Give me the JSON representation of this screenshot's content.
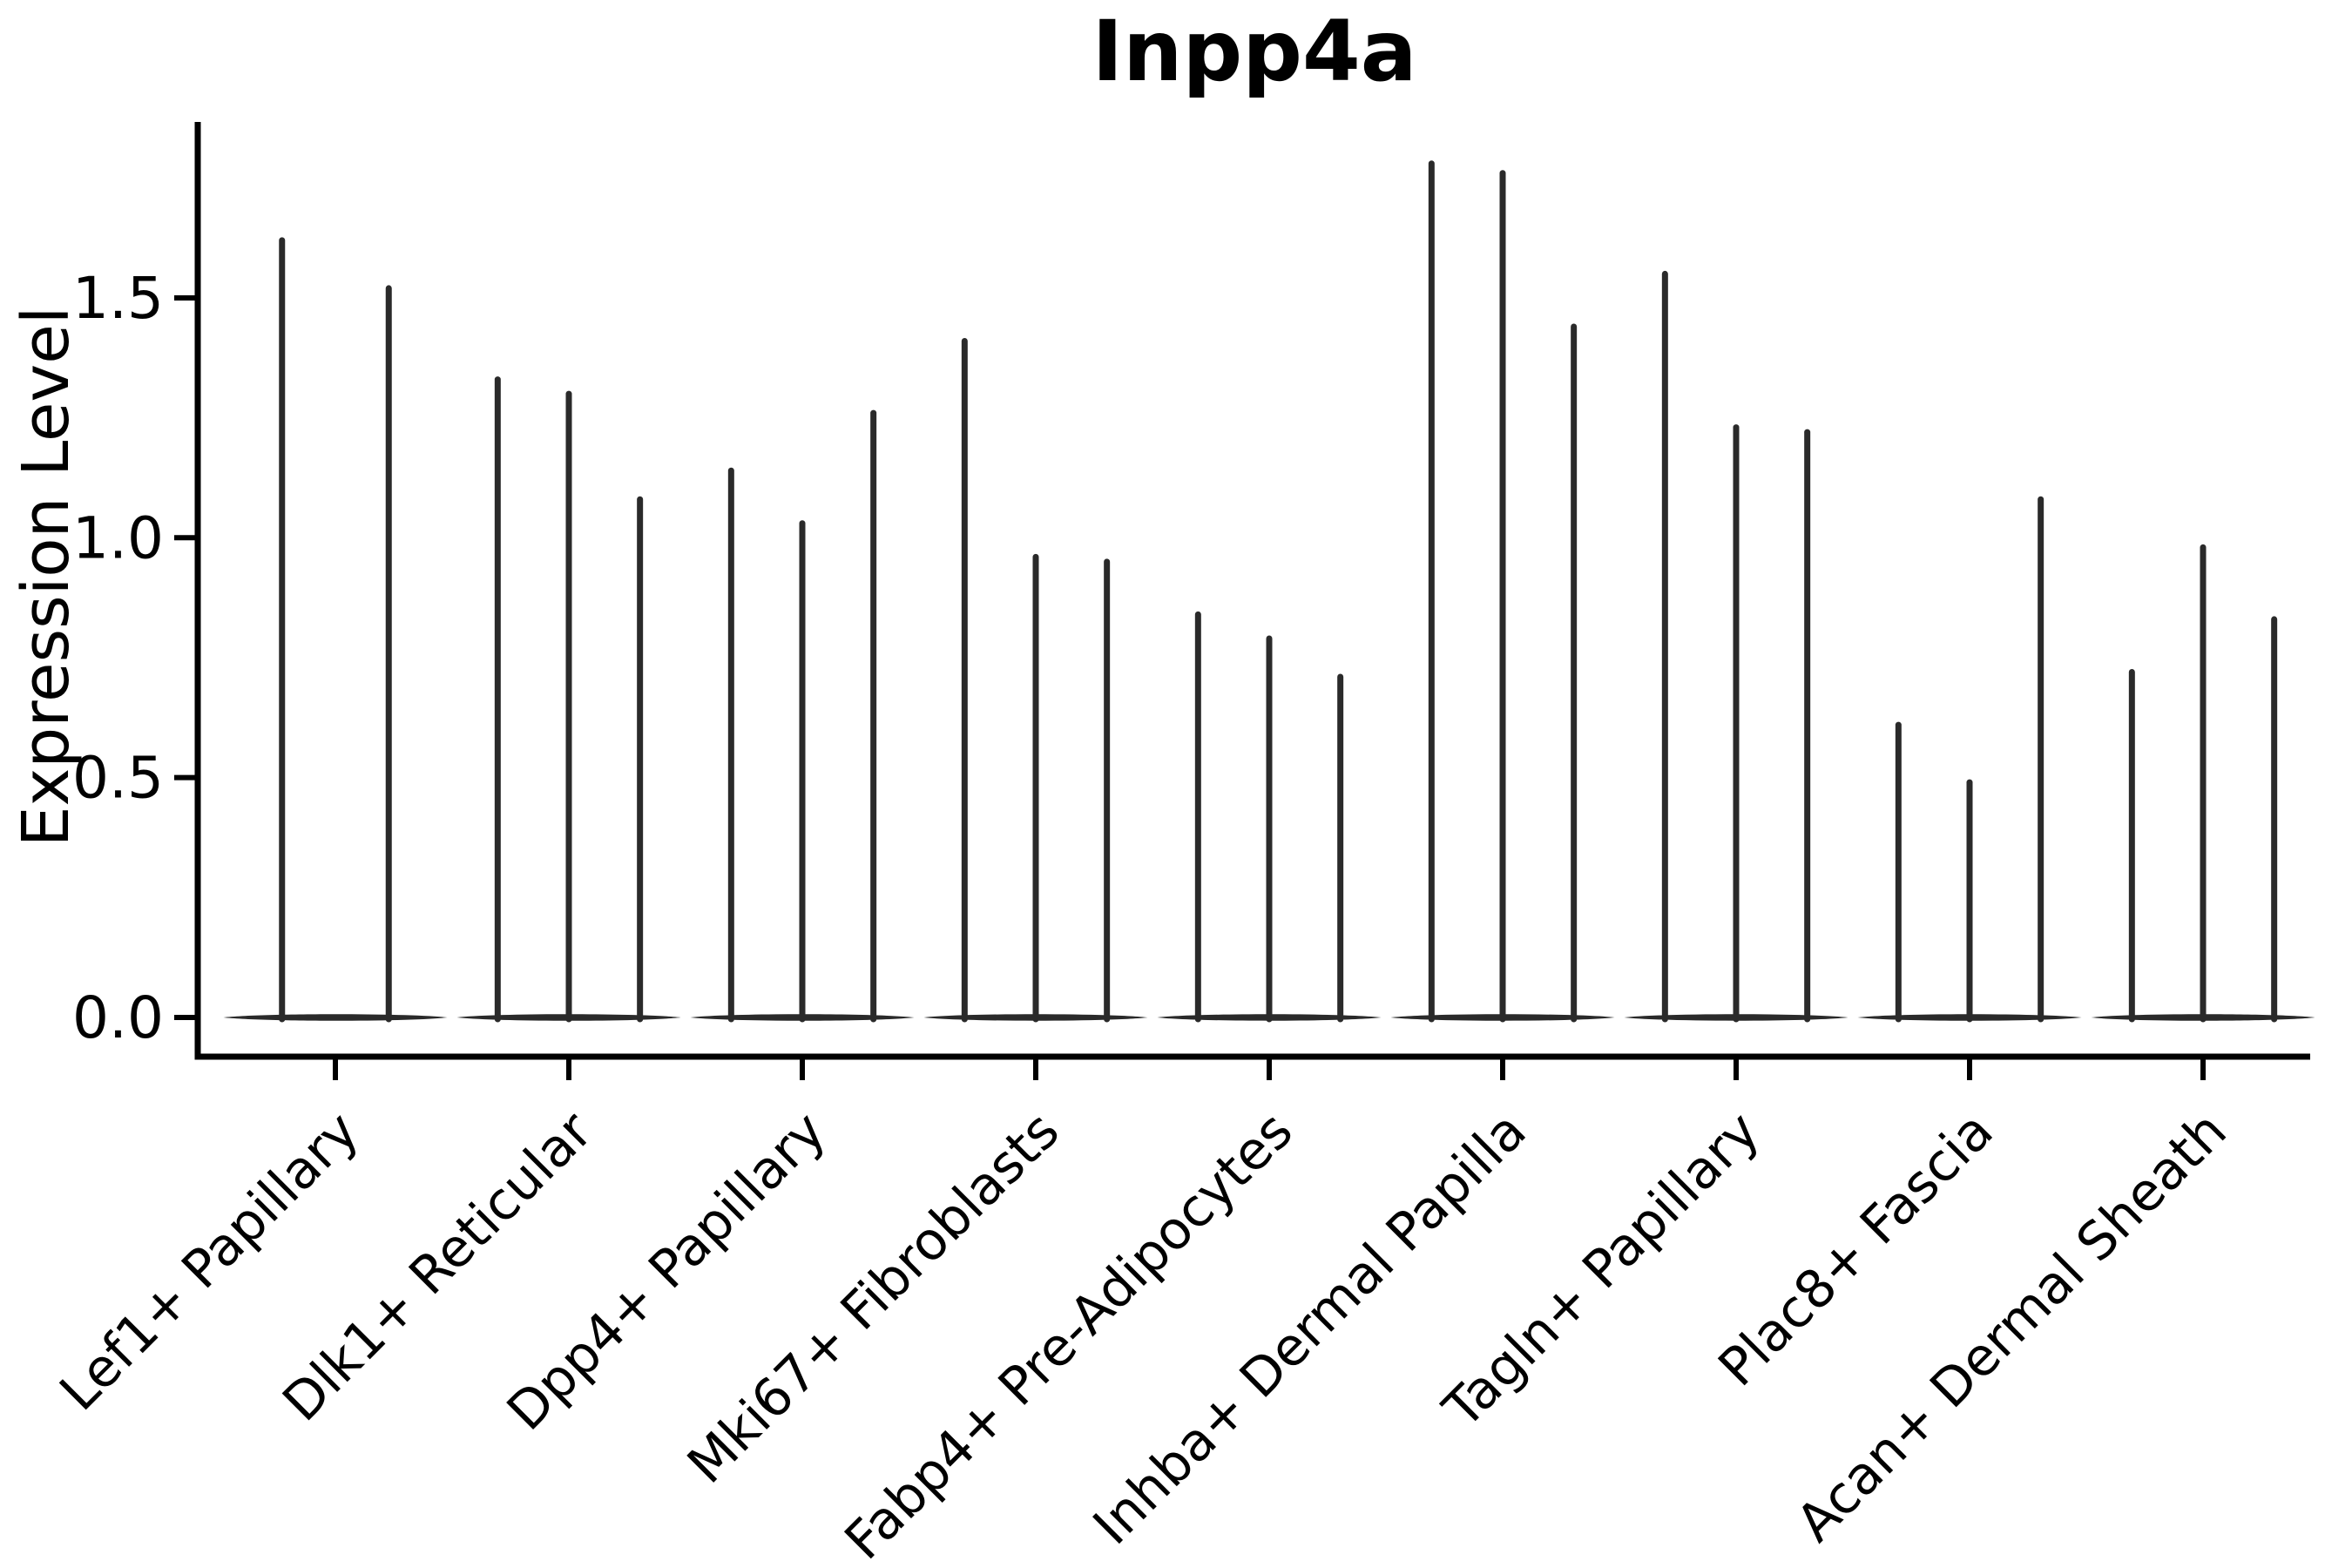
{
  "chart_data": {
    "type": "violin",
    "title": "Inpp4a",
    "ylabel": "Expression Level",
    "xlabel": "",
    "ylim": [
      -0.04,
      1.87
    ],
    "grid": false,
    "legend": false,
    "yticks": [
      0.0,
      0.5,
      1.0,
      1.5
    ],
    "ytick_labels": [
      "0.0",
      "0.5",
      "1.0",
      "1.5"
    ],
    "violin_style": "thin spike with flat lens-shaped base at zero (most cells zero expression)",
    "colors": {
      "violin": "#2a2a2a",
      "axis": "#000000",
      "background": "#ffffff"
    },
    "groups": [
      {
        "label": "Lef1+ Papillary",
        "spike_maxima": [
          1.62,
          1.52
        ]
      },
      {
        "label": "Dlk1+ Reticular",
        "spike_maxima": [
          1.33,
          1.3,
          1.08
        ]
      },
      {
        "label": "Dpp4+ Papillary",
        "spike_maxima": [
          1.14,
          1.03,
          1.26
        ]
      },
      {
        "label": "Mki67+ Fibroblasts",
        "spike_maxima": [
          1.41,
          0.96,
          0.95
        ]
      },
      {
        "label": "Fabp4+ Pre-Adipocytes",
        "spike_maxima": [
          0.84,
          0.79,
          0.71
        ]
      },
      {
        "label": "Inhba+ Dermal Papilla",
        "spike_maxima": [
          1.78,
          1.76,
          1.44
        ]
      },
      {
        "label": "Tagln+ Papillary",
        "spike_maxima": [
          1.55,
          1.23,
          1.22
        ]
      },
      {
        "label": "Plac8+ Fascia",
        "spike_maxima": [
          0.61,
          0.49,
          1.08
        ]
      },
      {
        "label": "Acan+ Dermal Sheath",
        "spike_maxima": [
          0.72,
          0.98,
          0.83
        ]
      }
    ]
  }
}
